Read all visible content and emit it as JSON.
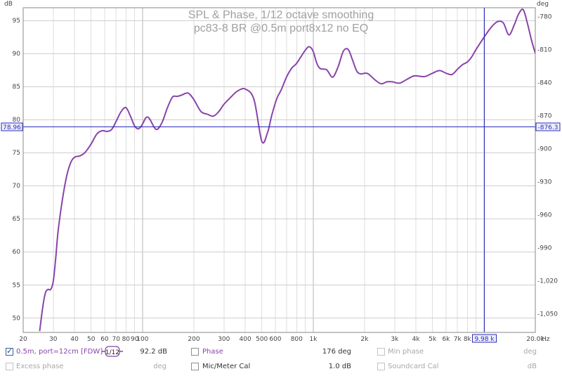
{
  "chart_data": {
    "type": "line",
    "title": "SPL & Phase, 1/12 octave smoothing",
    "subtitle": "pc83-8 BR @0.5m port8x12 no EQ",
    "xlabel": "Hz",
    "ylabel": "dB",
    "y2label": "deg",
    "x_scale": "log",
    "xlim": [
      20,
      20000
    ],
    "ylim": [
      47.8,
      96.9
    ],
    "y2lim": [
      -1067,
      -772
    ],
    "x_ticks": [
      20,
      30,
      40,
      50,
      60,
      70,
      80,
      90,
      100,
      200,
      300,
      400,
      500,
      600,
      800,
      1000,
      2000,
      3000,
      4000,
      5000,
      6000,
      7000,
      8000,
      20000
    ],
    "x_tick_labels": [
      "20",
      "30",
      "40",
      "50",
      "60",
      "70",
      "80",
      "90",
      "100",
      "200",
      "300",
      "400",
      "500",
      "600",
      "800",
      "1k",
      "2k",
      "3k",
      "4k",
      "5k",
      "6k",
      "7k",
      "8k",
      "20.0k"
    ],
    "y_ticks": [
      50,
      55,
      60,
      65,
      70,
      75,
      80,
      85,
      90,
      95
    ],
    "y2_ticks": [
      -1050,
      -1020,
      -990,
      -960,
      -930,
      -900,
      -870,
      -840,
      -810,
      -780
    ],
    "y2_tick_labels": [
      "-1,050",
      "-1,020",
      "-990",
      "-960",
      "-930",
      "-900",
      "-870",
      "-840",
      "-810",
      "-780"
    ],
    "grid": true,
    "color": "#8844aa",
    "cursor": {
      "x": 9980,
      "y": 78.96,
      "x_label": "9.98 k",
      "y_label": "78.96",
      "y2_label": "-876.3"
    },
    "series": [
      {
        "name": "0.5m, port=12cm [FDW]",
        "x": [
          25,
          26,
          27,
          28,
          29,
          30,
          31,
          32,
          34,
          36,
          38,
          40,
          43,
          46,
          50,
          54,
          58,
          62,
          66,
          70,
          75,
          80,
          85,
          90,
          95,
          100,
          105,
          110,
          120,
          130,
          140,
          150,
          160,
          170,
          185,
          200,
          220,
          240,
          260,
          280,
          300,
          330,
          360,
          400,
          450,
          500,
          540,
          570,
          600,
          620,
          650,
          700,
          750,
          800,
          900,
          950,
          1000,
          1050,
          1100,
          1200,
          1300,
          1400,
          1500,
          1600,
          1700,
          1800,
          1900,
          2000,
          2100,
          2300,
          2500,
          2700,
          2900,
          3200,
          3500,
          3800,
          4000,
          4500,
          5000,
          5500,
          6000,
          6500,
          7000,
          7500,
          8000,
          8500,
          9000,
          10000,
          11000,
          12000,
          13000,
          14000,
          15000,
          16000,
          17000,
          18000,
          19000,
          20000
        ],
        "y": [
          48.0,
          51.5,
          53.8,
          54.3,
          54.3,
          55.5,
          59.0,
          63.0,
          68.0,
          71.5,
          73.5,
          74.3,
          74.5,
          75.0,
          76.3,
          77.8,
          78.3,
          78.2,
          78.5,
          79.7,
          81.2,
          81.8,
          80.5,
          79.0,
          78.6,
          79.3,
          80.3,
          80.1,
          78.5,
          79.5,
          81.8,
          83.4,
          83.5,
          83.7,
          84.0,
          83.0,
          81.2,
          80.8,
          80.5,
          81.2,
          82.3,
          83.4,
          84.3,
          84.6,
          83.0,
          76.7,
          78.0,
          80.5,
          82.5,
          83.5,
          84.5,
          86.5,
          87.8,
          88.5,
          90.5,
          91.0,
          90.3,
          88.5,
          87.7,
          87.5,
          86.4,
          88.0,
          90.3,
          90.6,
          89.0,
          87.3,
          86.9,
          87.0,
          86.9,
          86.0,
          85.4,
          85.7,
          85.7,
          85.5,
          86.0,
          86.5,
          86.6,
          86.5,
          87.0,
          87.4,
          87.0,
          86.8,
          87.6,
          88.3,
          88.7,
          89.5,
          90.6,
          92.4,
          93.9,
          94.8,
          94.6,
          92.8,
          94.2,
          96.0,
          96.6,
          94.5,
          92.0,
          90.0
        ]
      }
    ]
  },
  "legend": {
    "row1": [
      {
        "label": "0.5m, port=12cm [FDW]",
        "checked": true,
        "value": "92.2 dB",
        "smoothing": "1/12"
      },
      {
        "label": "Phase",
        "checked": false,
        "value": "176 deg"
      },
      {
        "label": "Min phase",
        "checked": false,
        "disabled": true,
        "value": "deg"
      }
    ],
    "row2": [
      {
        "label": "Excess phase",
        "checked": false,
        "disabled": true,
        "value": "deg"
      },
      {
        "label": "Mic/Meter Cal",
        "checked": false,
        "value": "1.0 dB"
      },
      {
        "label": "Soundcard Cal",
        "checked": false,
        "disabled": true,
        "value": "dB"
      }
    ]
  }
}
